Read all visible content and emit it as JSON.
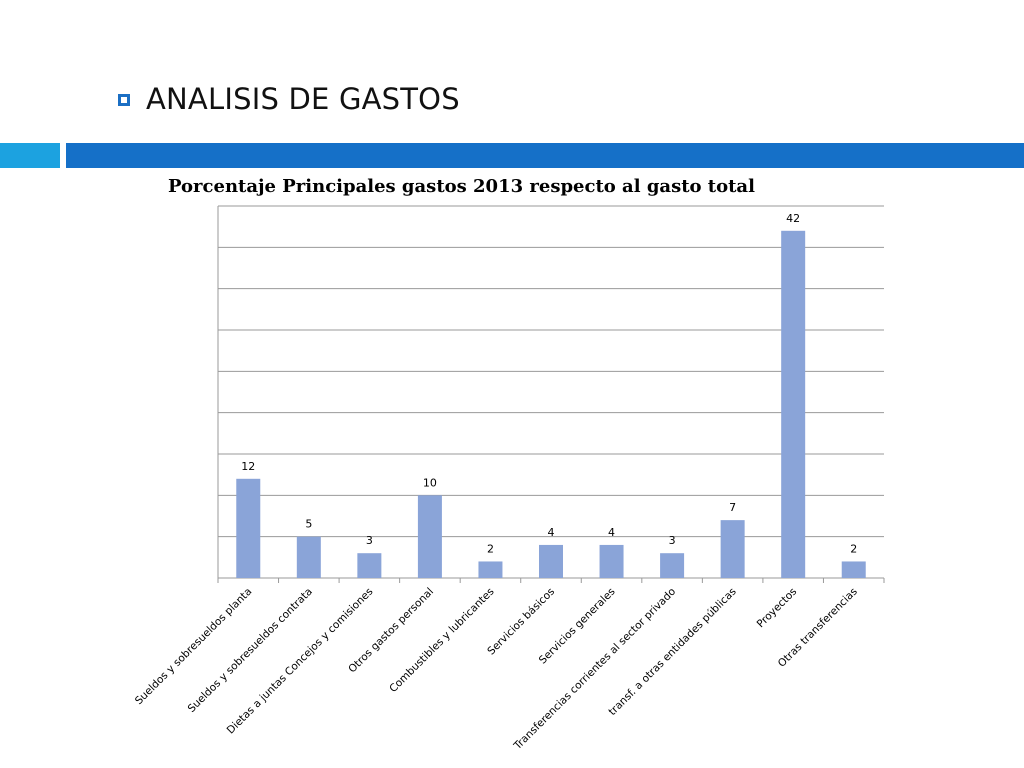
{
  "slide": {
    "title": "ANALISIS DE GASTOS",
    "bullet_icon": "square-bullet-icon",
    "accent_colors": [
      "#1ca2e0",
      "#1570c8"
    ]
  },
  "chart_data": {
    "type": "bar",
    "title": "Porcentaje Principales gastos 2013 respecto al gasto total",
    "xlabel": "",
    "ylabel": "",
    "categories": [
      "Sueldos y sobresueldos planta",
      "Sueldos y sobresueldos contrata",
      "Dietas a juntas Concejos y comisiones",
      "Otros gastos personal",
      "Combustibles y lubricantes",
      "Servicios básicos",
      "Servicios generales",
      "Transferencias corrientes al sector privado",
      "transf. a otras entidades públicas",
      "Proyectos",
      "Otras transferencias"
    ],
    "values": [
      12,
      5,
      3,
      10,
      2,
      4,
      4,
      3,
      7,
      42,
      2
    ],
    "ylim": [
      0,
      45
    ],
    "grid": true,
    "data_labels": true,
    "bar_color": "#8aa4d8",
    "grid_color": "#9a9a9a"
  }
}
